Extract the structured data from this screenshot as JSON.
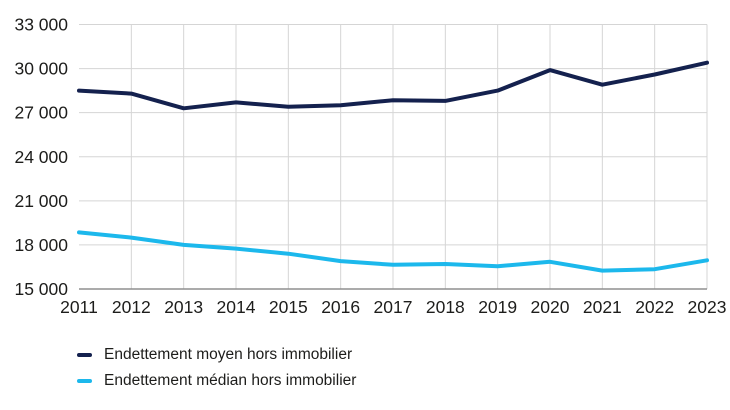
{
  "colors": {
    "moyen": "#14214e",
    "median": "#1cb8ec",
    "grid": "#d5d5d5",
    "axis": "#8f8f8f",
    "text": "#1d1d1b",
    "background": "#ffffff"
  },
  "chart_data": {
    "type": "line",
    "x": [
      2011,
      2012,
      2013,
      2014,
      2015,
      2016,
      2017,
      2018,
      2019,
      2020,
      2021,
      2022,
      2023
    ],
    "series": [
      {
        "name": "Endettement moyen hors immobilier",
        "color_key": "moyen",
        "values": [
          28500,
          28300,
          27300,
          27700,
          27400,
          27500,
          27850,
          27800,
          28500,
          29900,
          28900,
          29600,
          30400
        ]
      },
      {
        "name": "Endettement médian hors immobilier",
        "color_key": "median",
        "values": [
          18850,
          18500,
          18000,
          17750,
          17400,
          16900,
          16650,
          16700,
          16550,
          16850,
          16250,
          16350,
          16950
        ]
      }
    ],
    "ylim": [
      15000,
      33000
    ],
    "yticks": [
      {
        "value": 15000,
        "label": "15 000"
      },
      {
        "value": 18000,
        "label": "18 000"
      },
      {
        "value": 21000,
        "label": "21 000"
      },
      {
        "value": 24000,
        "label": "24 000"
      },
      {
        "value": 27000,
        "label": "27 000"
      },
      {
        "value": 30000,
        "label": "30 000"
      },
      {
        "value": 33000,
        "label": "33 000"
      }
    ],
    "xtick_labels": [
      "2011",
      "2012",
      "2013",
      "2014",
      "2015",
      "2016",
      "2017",
      "2018",
      "2019",
      "2020",
      "2021",
      "2022",
      "2023"
    ],
    "grid": true,
    "legend_position": "bottom-left",
    "title": "",
    "xlabel": "",
    "ylabel": ""
  }
}
